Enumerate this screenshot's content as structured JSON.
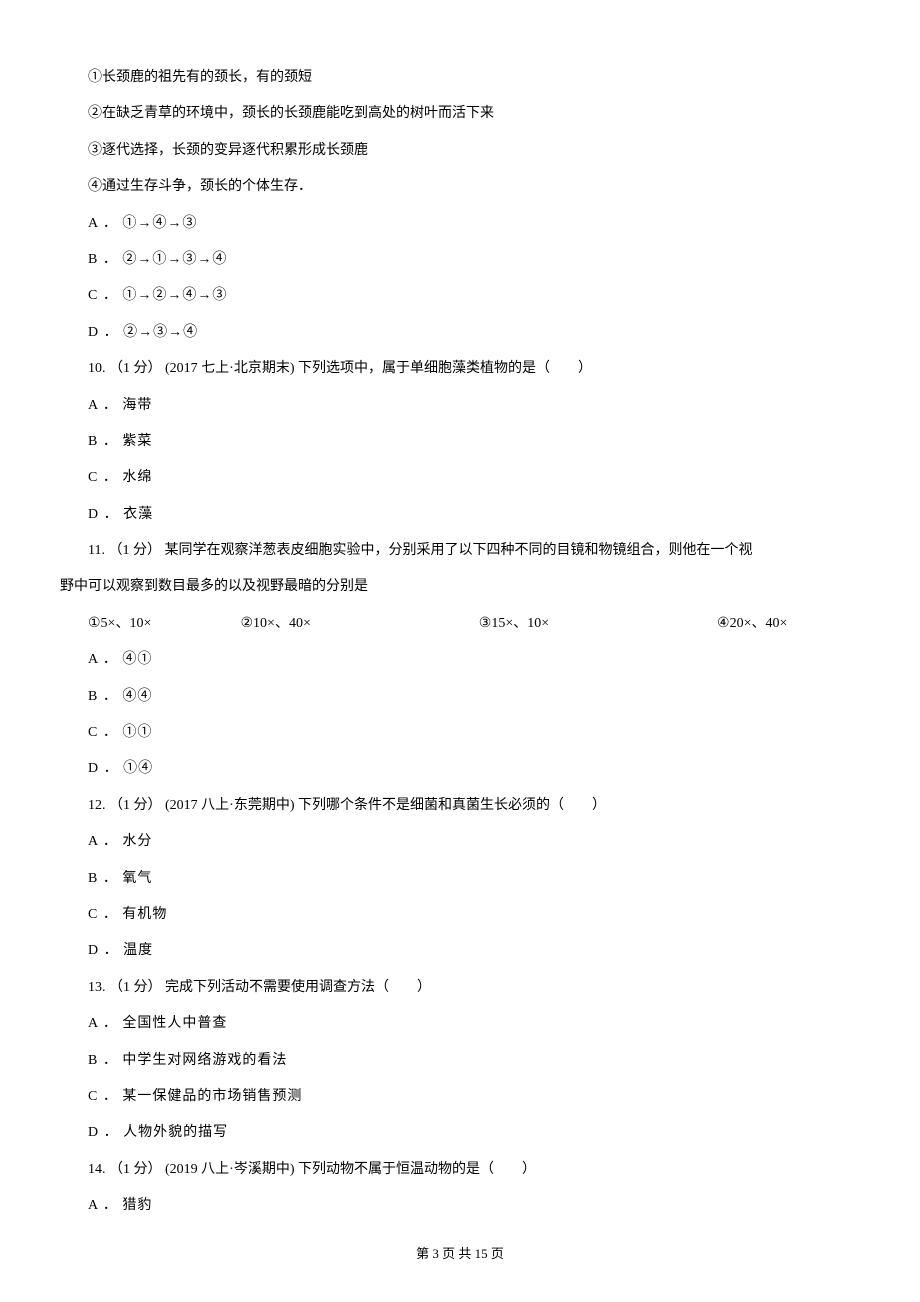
{
  "q9": {
    "s1": "①长颈鹿的祖先有的颈长，有的颈短",
    "s2": "②在缺乏青草的环境中，颈长的长颈鹿能吃到高处的树叶而活下来",
    "s3": "③逐代选择，长颈的变异逐代积累形成长颈鹿",
    "s4": "④通过生存斗争，颈长的个体生存．",
    "a": "A ． ①→④→③",
    "b": "B ． ②→①→③→④",
    "c": "C ． ①→②→④→③",
    "d": "D ． ②→③→④"
  },
  "q10": {
    "intro": "10. （1 分） (2017 七上·北京期末) 下列选项中，属于单细胞藻类植物的是（　　）",
    "a": "A ． 海带",
    "b": "B ． 紫菜",
    "c": "C ． 水绵",
    "d": "D ． 衣藻"
  },
  "q11": {
    "intro1": "11. （1 分）  某同学在观察洋葱表皮细胞实验中，分别采用了以下四种不同的目镜和物镜组合，则他在一个视",
    "intro2": "野中可以观察到数目最多的以及视野最暗的分别是",
    "combo1": "①5×、10×",
    "combo2": "②10×、40×",
    "combo3": "③15×、10×",
    "combo4": "④20×、40×",
    "a": "A ． ④①",
    "b": "B ． ④④",
    "c": "C ． ①①",
    "d": "D ． ①④"
  },
  "q12": {
    "intro": "12. （1 分） (2017 八上·东莞期中) 下列哪个条件不是细菌和真菌生长必须的（　　）",
    "a": "A ． 水分",
    "b": "B ． 氧气",
    "c": "C ． 有机物",
    "d": "D ． 温度"
  },
  "q13": {
    "intro": "13. （1 分）  完成下列活动不需要使用调查方法（　　）",
    "a": "A ． 全国性人中普查",
    "b": "B ． 中学生对网络游戏的看法",
    "c": "C ． 某一保健品的市场销售预测",
    "d": "D ． 人物外貌的描写"
  },
  "q14": {
    "intro": "14. （1 分） (2019 八上·岑溪期中) 下列动物不属于恒温动物的是（　　）",
    "a": "A ． 猎豹"
  },
  "footer": {
    "text": "第 3 页 共 15 页"
  }
}
